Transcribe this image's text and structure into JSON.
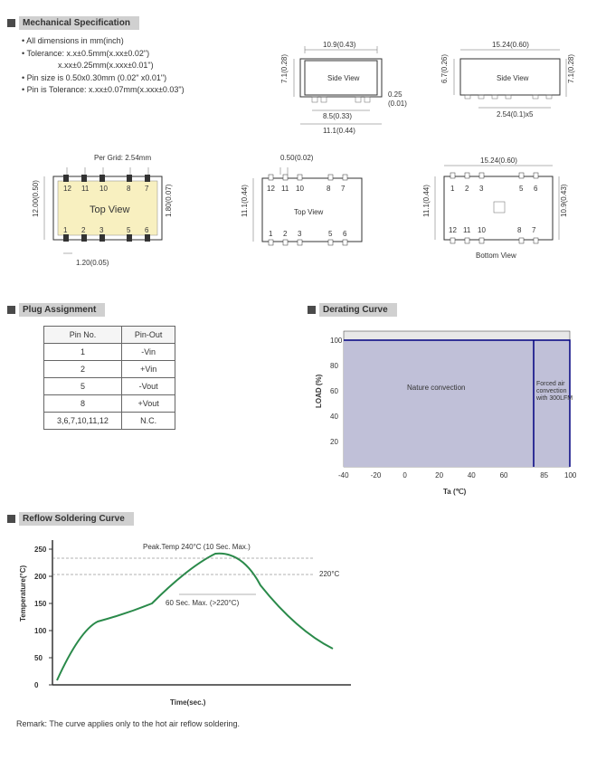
{
  "sections": {
    "mech": "Mechanical Specification",
    "plug": "Plug Assignment",
    "derating": "Derating Curve",
    "reflow": "Reflow Soldering Curve"
  },
  "spec_list": [
    "All dimensions in mm(inch)",
    "Tolerance: x.x±0.5mm(x.xx±0.02\")",
    "x.xx±0.25mm(x.xxx±0.01\")",
    "Pin size is 0.50x0.30mm (0.02\" x0.01\")",
    "Pin is Tolerance: x.xx±0.07mm(x.xxx±0.03\")"
  ],
  "side1": {
    "w": "10.9(0.43)",
    "h": "7.1(0.28)",
    "inner_w": "8.5(0.33)",
    "outer_w": "11.1(0.44)",
    "clear": "0.25",
    "clear2": "(0.01)",
    "label": "Side View"
  },
  "side2": {
    "w": "15.24(0.60)",
    "h": "7.1(0.28)",
    "h2": "6.7(0.26)",
    "pitch": "2.54(0.1)x5",
    "label": "Side View"
  },
  "top1": {
    "grid": "Per Grid: 2.54mm",
    "h": "12.00(0.50)",
    "pin_h": "1.80(0.07)",
    "pin_w": "1.20(0.05)",
    "label": "Top View",
    "pins_top": [
      "12",
      "11",
      "10",
      "8",
      "7"
    ],
    "pins_bot": [
      "1",
      "2",
      "3",
      "5",
      "6"
    ]
  },
  "top2": {
    "pitch": "0.50(0.02)",
    "h": "11.1(0.44)",
    "label": "Top View",
    "pins_top": [
      "12",
      "11",
      "10",
      "8",
      "7"
    ],
    "pins_bot": [
      "1",
      "2",
      "3",
      "5",
      "6"
    ]
  },
  "bottom": {
    "w": "15.24(0.60)",
    "h": "10.9(0.43)",
    "label": "Bottom View",
    "pins_top": [
      "1",
      "2",
      "3",
      "5",
      "6"
    ],
    "pins_bot": [
      "12",
      "11",
      "10",
      "8",
      "7"
    ]
  },
  "plug_table": {
    "headers": [
      "Pin No.",
      "Pin-Out"
    ],
    "rows": [
      [
        "1",
        "-Vin"
      ],
      [
        "2",
        "+Vin"
      ],
      [
        "5",
        "-Vout"
      ],
      [
        "8",
        "+Vout"
      ],
      [
        "3,6,7,10,11,12",
        "N.C."
      ]
    ]
  },
  "derating_chart": {
    "ylabel": "LOAD (%)",
    "xlabel": "Ta (℃)",
    "yticks": [
      20,
      40,
      60,
      80,
      100
    ],
    "xticks": [
      -40,
      -20,
      0,
      20,
      40,
      60,
      85,
      100
    ],
    "region1_label": "Nature convection",
    "region2_label": "Forced air convection with 300LFM",
    "bg": "#e8e8e8",
    "region1_color": "#b8b8d0",
    "region2_color": "#b8b8d0",
    "line_color": "#000080"
  },
  "reflow_chart": {
    "ylabel": "Temperature(°C)",
    "xlabel": "Time(sec.)",
    "yticks": [
      0,
      50,
      100,
      150,
      200,
      250
    ],
    "peak_label": "Peak.Temp 240°C (10 Sec. Max.)",
    "line220": "220°C",
    "duration": "60 Sec. Max. (>220°C)",
    "curve_color": "#2a8a4a"
  },
  "remark": "Remark: The curve applies only to the hot air reflow soldering."
}
